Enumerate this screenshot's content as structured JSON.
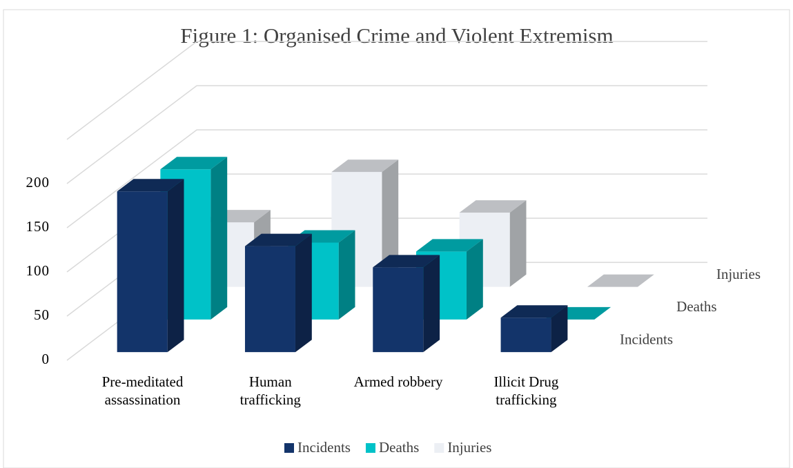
{
  "chart_data": {
    "type": "bar3d",
    "title": "Figure 1: Organised Crime and Violent Extremism",
    "categories": [
      "Pre-meditated assassination",
      "Human trafficking",
      "Armed robbery",
      "Illicit Drug trafficking"
    ],
    "series": [
      {
        "name": "Incidents",
        "color": "#13346a",
        "values": [
          182,
          120,
          96,
          39
        ]
      },
      {
        "name": "Deaths",
        "color": "#00c2c8",
        "values": [
          170,
          87,
          77,
          0
        ]
      },
      {
        "name": "Injuries",
        "color": "#eceff4",
        "values": [
          73,
          130,
          84,
          0
        ]
      }
    ],
    "ylim": [
      0,
      250
    ],
    "yticks": [
      0,
      50,
      100,
      150,
      200
    ],
    "grid": true
  }
}
